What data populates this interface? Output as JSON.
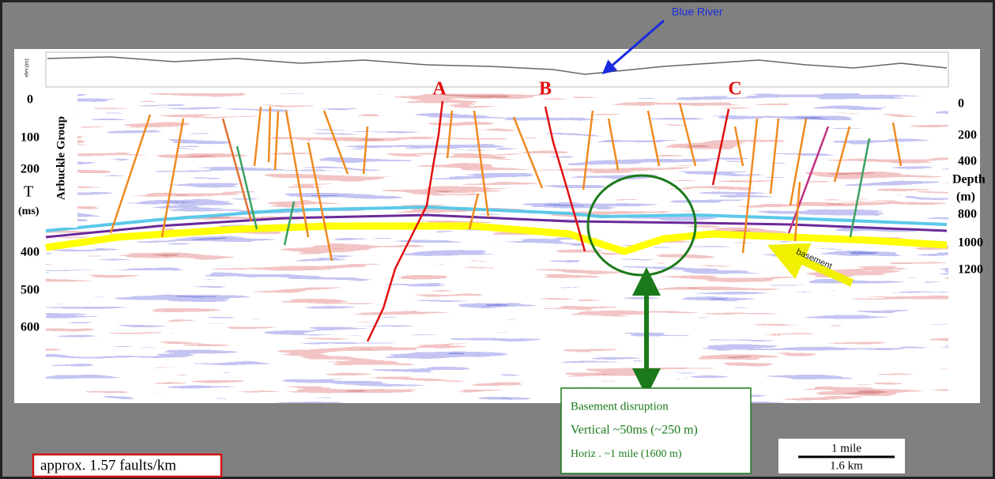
{
  "labels": {
    "blue_river": "Blue River",
    "elev": "elev.(m)",
    "faults": [
      "A",
      "B",
      "C"
    ],
    "arbuckle": "Arbuckle Group",
    "time_axis": {
      "title": "T",
      "unit": "(ms)",
      "ticks": [
        "0",
        "100",
        "200",
        "400",
        "500",
        "600"
      ]
    },
    "depth_axis": {
      "title": "Depth",
      "unit": "(m)",
      "ticks": [
        "0",
        "200",
        "400",
        "800",
        "1000",
        "1200"
      ]
    },
    "basement": "basement"
  },
  "callout": {
    "title": "Basement disruption",
    "vertical": "Vertical ~50ms (~250 m)",
    "horizontal": "Horiz . ~1 mile (1600 m)"
  },
  "scale_bar": {
    "top": "1 mile",
    "bottom": "1.6 km"
  },
  "fault_density": "approx. 1.57 faults/km"
}
